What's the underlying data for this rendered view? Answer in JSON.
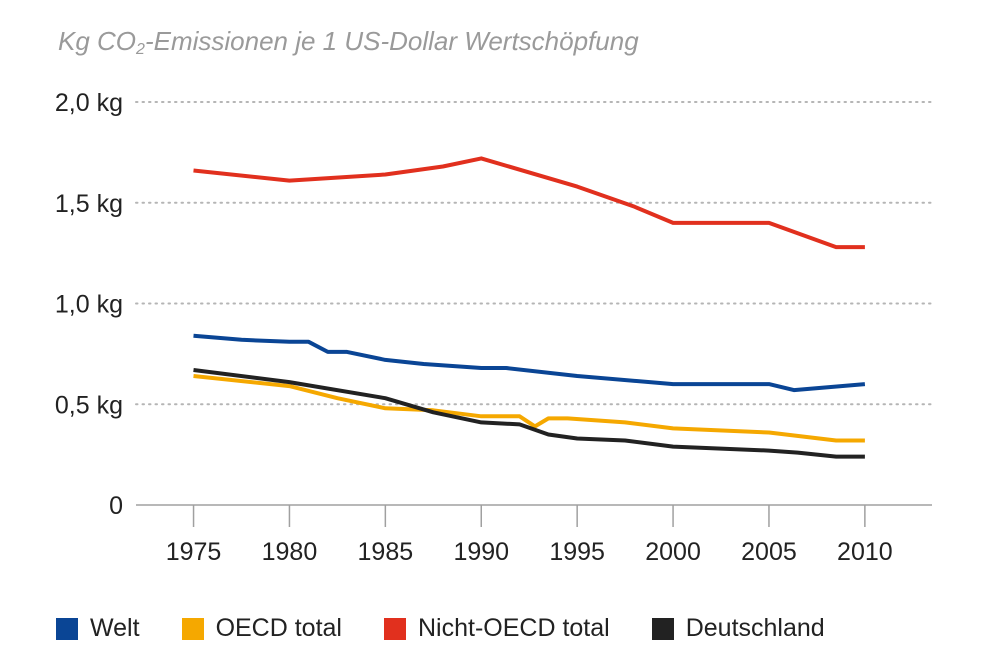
{
  "chart_data": {
    "type": "line",
    "title_prefix": "Kg CO",
    "title_sub": "2",
    "title_suffix": "-Emissionen je 1 US-Dollar Wertschöpfung",
    "xlabel": "",
    "ylabel": "",
    "x_ticks": [
      "1975",
      "1980",
      "1985",
      "1990",
      "1995",
      "2000",
      "2005",
      "2010"
    ],
    "y_ticks": [
      {
        "value": 0,
        "label": "0"
      },
      {
        "value": 0.5,
        "label": "0,5 kg"
      },
      {
        "value": 1.0,
        "label": "1,0 kg"
      },
      {
        "value": 1.5,
        "label": "1,5 kg"
      },
      {
        "value": 2.0,
        "label": "2,0 kg"
      }
    ],
    "xlim": [
      1972,
      2013.5
    ],
    "ylim": [
      0,
      2.0
    ],
    "grid": "horizontal dotted",
    "legend_position": "bottom",
    "series": [
      {
        "name": "Welt",
        "color": "#0a4595",
        "points": [
          [
            1975,
            0.84
          ],
          [
            1977.5,
            0.82
          ],
          [
            1980,
            0.81
          ],
          [
            1981,
            0.81
          ],
          [
            1982,
            0.76
          ],
          [
            1983,
            0.76
          ],
          [
            1985,
            0.72
          ],
          [
            1987,
            0.7
          ],
          [
            1990,
            0.68
          ],
          [
            1991.3,
            0.68
          ],
          [
            1995,
            0.64
          ],
          [
            2000,
            0.6
          ],
          [
            2005,
            0.6
          ],
          [
            2006.3,
            0.57
          ],
          [
            2010,
            0.6
          ]
        ]
      },
      {
        "name": "OECD total",
        "color": "#f5a800",
        "points": [
          [
            1975,
            0.64
          ],
          [
            1980,
            0.59
          ],
          [
            1982.5,
            0.53
          ],
          [
            1985,
            0.48
          ],
          [
            1987.5,
            0.47
          ],
          [
            1990,
            0.44
          ],
          [
            1992,
            0.44
          ],
          [
            1992.8,
            0.39
          ],
          [
            1993.5,
            0.43
          ],
          [
            1994.5,
            0.43
          ],
          [
            1997.5,
            0.41
          ],
          [
            2000,
            0.38
          ],
          [
            2005,
            0.36
          ],
          [
            2008.5,
            0.32
          ],
          [
            2010,
            0.32
          ]
        ]
      },
      {
        "name": "Nicht-OECD total",
        "color": "#e1301e",
        "points": [
          [
            1975,
            1.66
          ],
          [
            1980,
            1.61
          ],
          [
            1985,
            1.64
          ],
          [
            1988,
            1.68
          ],
          [
            1990,
            1.72
          ],
          [
            1995,
            1.58
          ],
          [
            1998,
            1.48
          ],
          [
            2000,
            1.4
          ],
          [
            2005,
            1.4
          ],
          [
            2008.5,
            1.28
          ],
          [
            2010,
            1.28
          ]
        ]
      },
      {
        "name": "Deutschland",
        "color": "#222222",
        "points": [
          [
            1975,
            0.67
          ],
          [
            1980,
            0.61
          ],
          [
            1985,
            0.53
          ],
          [
            1987.5,
            0.46
          ],
          [
            1990,
            0.41
          ],
          [
            1992,
            0.4
          ],
          [
            1993.5,
            0.35
          ],
          [
            1995,
            0.33
          ],
          [
            1997.5,
            0.32
          ],
          [
            2000,
            0.29
          ],
          [
            2005,
            0.27
          ],
          [
            2006.5,
            0.26
          ],
          [
            2008.5,
            0.24
          ],
          [
            2010,
            0.24
          ]
        ]
      }
    ]
  }
}
